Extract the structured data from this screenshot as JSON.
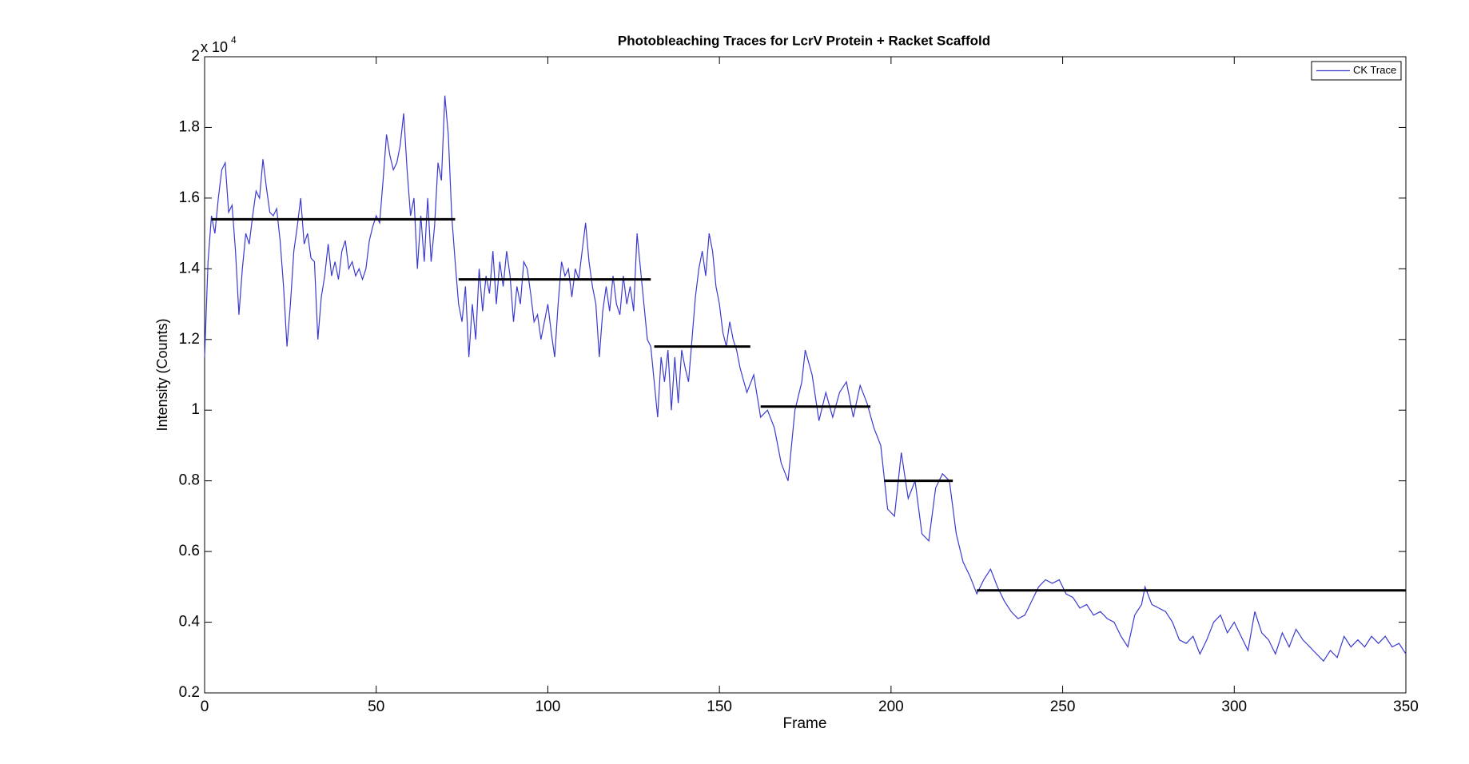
{
  "chart_data": {
    "type": "line",
    "title": "Photobleaching Traces for LcrV Protein + Racket Scaffold",
    "x_label": "Frame",
    "y_label": "Intensity (Counts)",
    "y_exponent_base": "x 10",
    "y_exponent": "4",
    "xlim": [
      0,
      350
    ],
    "xticks": [
      0,
      50,
      100,
      150,
      200,
      250,
      300,
      350
    ],
    "ylim": [
      0.2,
      2
    ],
    "yticks": [
      0.2,
      0.4,
      0.6,
      0.8,
      1,
      1.2,
      1.4,
      1.6,
      1.8,
      2
    ],
    "legend_position": "top-right",
    "series": [
      {
        "name": "CK Trace",
        "color": "#3a3ad0",
        "x": [
          0,
          1,
          2,
          3,
          4,
          5,
          6,
          7,
          8,
          9,
          10,
          11,
          12,
          13,
          14,
          15,
          16,
          17,
          18,
          19,
          20,
          21,
          22,
          23,
          24,
          25,
          26,
          27,
          28,
          29,
          30,
          31,
          32,
          33,
          34,
          35,
          36,
          37,
          38,
          39,
          40,
          41,
          42,
          43,
          44,
          45,
          46,
          47,
          48,
          49,
          50,
          51,
          52,
          53,
          54,
          55,
          56,
          57,
          58,
          59,
          60,
          61,
          62,
          63,
          64,
          65,
          66,
          67,
          68,
          69,
          70,
          71,
          72,
          73,
          74,
          75,
          76,
          77,
          78,
          79,
          80,
          81,
          82,
          83,
          84,
          85,
          86,
          87,
          88,
          89,
          90,
          91,
          92,
          93,
          94,
          95,
          96,
          97,
          98,
          99,
          100,
          101,
          102,
          103,
          104,
          105,
          106,
          107,
          108,
          109,
          110,
          111,
          112,
          113,
          114,
          115,
          116,
          117,
          118,
          119,
          120,
          121,
          122,
          123,
          124,
          125,
          126,
          127,
          128,
          129,
          130,
          131,
          132,
          133,
          134,
          135,
          136,
          137,
          138,
          139,
          140,
          141,
          142,
          143,
          144,
          145,
          146,
          147,
          148,
          149,
          150,
          151,
          152,
          153,
          154,
          155,
          156,
          158,
          160,
          162,
          164,
          166,
          168,
          170,
          172,
          174,
          175,
          177,
          179,
          181,
          183,
          185,
          187,
          189,
          191,
          193,
          195,
          197,
          199,
          201,
          203,
          205,
          207,
          209,
          211,
          213,
          215,
          217,
          219,
          221,
          223,
          225,
          227,
          229,
          231,
          233,
          235,
          237,
          239,
          241,
          243,
          245,
          247,
          249,
          251,
          253,
          255,
          257,
          259,
          261,
          263,
          265,
          267,
          269,
          271,
          273,
          274,
          276,
          278,
          280,
          282,
          284,
          286,
          288,
          290,
          292,
          294,
          296,
          298,
          300,
          302,
          304,
          306,
          308,
          310,
          312,
          314,
          316,
          318,
          320,
          322,
          324,
          326,
          328,
          330,
          332,
          334,
          336,
          338,
          340,
          342,
          344,
          346,
          348,
          350
        ],
        "values": [
          1.15,
          1.42,
          1.55,
          1.5,
          1.6,
          1.68,
          1.7,
          1.56,
          1.58,
          1.45,
          1.27,
          1.4,
          1.5,
          1.47,
          1.55,
          1.62,
          1.6,
          1.71,
          1.63,
          1.56,
          1.55,
          1.57,
          1.48,
          1.35,
          1.18,
          1.3,
          1.45,
          1.52,
          1.6,
          1.47,
          1.5,
          1.43,
          1.42,
          1.2,
          1.32,
          1.38,
          1.47,
          1.38,
          1.42,
          1.37,
          1.45,
          1.48,
          1.4,
          1.42,
          1.38,
          1.4,
          1.37,
          1.4,
          1.48,
          1.52,
          1.55,
          1.53,
          1.65,
          1.78,
          1.72,
          1.68,
          1.7,
          1.75,
          1.84,
          1.68,
          1.55,
          1.6,
          1.4,
          1.55,
          1.42,
          1.6,
          1.42,
          1.52,
          1.7,
          1.65,
          1.89,
          1.78,
          1.55,
          1.42,
          1.3,
          1.25,
          1.35,
          1.15,
          1.3,
          1.2,
          1.4,
          1.28,
          1.38,
          1.33,
          1.45,
          1.3,
          1.42,
          1.35,
          1.45,
          1.38,
          1.25,
          1.35,
          1.3,
          1.42,
          1.4,
          1.33,
          1.25,
          1.27,
          1.2,
          1.25,
          1.3,
          1.22,
          1.15,
          1.3,
          1.42,
          1.38,
          1.4,
          1.32,
          1.4,
          1.37,
          1.45,
          1.53,
          1.42,
          1.35,
          1.3,
          1.15,
          1.28,
          1.35,
          1.28,
          1.38,
          1.3,
          1.27,
          1.38,
          1.3,
          1.35,
          1.28,
          1.5,
          1.4,
          1.3,
          1.2,
          1.18,
          1.08,
          0.98,
          1.15,
          1.08,
          1.17,
          1.0,
          1.15,
          1.02,
          1.17,
          1.12,
          1.08,
          1.2,
          1.32,
          1.4,
          1.45,
          1.38,
          1.5,
          1.45,
          1.35,
          1.3,
          1.22,
          1.18,
          1.25,
          1.2,
          1.17,
          1.12,
          1.05,
          1.1,
          0.98,
          1.0,
          0.95,
          0.85,
          0.8,
          1.0,
          1.08,
          1.17,
          1.1,
          0.97,
          1.05,
          0.98,
          1.05,
          1.08,
          0.98,
          1.07,
          1.02,
          0.95,
          0.9,
          0.72,
          0.7,
          0.88,
          0.75,
          0.8,
          0.65,
          0.63,
          0.78,
          0.82,
          0.8,
          0.65,
          0.57,
          0.53,
          0.48,
          0.52,
          0.55,
          0.5,
          0.46,
          0.43,
          0.41,
          0.42,
          0.46,
          0.5,
          0.52,
          0.51,
          0.52,
          0.48,
          0.47,
          0.44,
          0.45,
          0.42,
          0.43,
          0.41,
          0.4,
          0.36,
          0.33,
          0.42,
          0.45,
          0.5,
          0.45,
          0.44,
          0.43,
          0.4,
          0.35,
          0.34,
          0.36,
          0.31,
          0.35,
          0.4,
          0.42,
          0.37,
          0.4,
          0.36,
          0.32,
          0.43,
          0.37,
          0.35,
          0.31,
          0.37,
          0.33,
          0.38,
          0.35,
          0.33,
          0.31,
          0.29,
          0.32,
          0.3,
          0.36,
          0.33,
          0.35,
          0.33,
          0.36,
          0.34,
          0.36,
          0.33,
          0.34,
          0.31
        ]
      }
    ],
    "steps_color": "#000000",
    "steps": [
      {
        "x": [
          2,
          73
        ],
        "value": 1.54
      },
      {
        "x": [
          74,
          130
        ],
        "value": 1.37
      },
      {
        "x": [
          131,
          159
        ],
        "value": 1.18
      },
      {
        "x": [
          162,
          194
        ],
        "value": 1.01
      },
      {
        "x": [
          198,
          218
        ],
        "value": 0.8
      },
      {
        "x": [
          225,
          350
        ],
        "value": 0.49
      }
    ]
  }
}
